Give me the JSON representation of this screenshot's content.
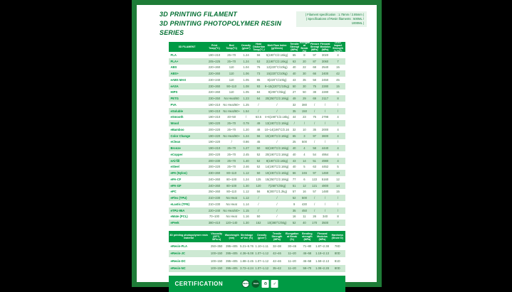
{
  "header": {
    "title_line1": "3D PRINTING FILAMENT",
    "title_line2": "3D PRINTING PHOTOPOLYMER RESIN SERIES",
    "spec_note_line1": "| Filament specification : 1.75mm / 2.85mm |",
    "spec_note_line2": "| Specifications of Resin filaments : 500ML / 1000ML |"
  },
  "colors": {
    "frame_green": "#1e7c37",
    "header_green": "#009a44",
    "row_alt_green": "#cde9d3",
    "title_green": "#006e30",
    "value_green": "#3c6e44",
    "letterbox": "#000000"
  },
  "filament_table": {
    "columns": [
      "3D FILAMENT",
      "Print Temp(°C)",
      "Bed Temp(°C)",
      "Density (g/cm³)",
      "Heat Distortion Temp(°C,0.45MPa)",
      "Melt Flow Index (g/10min)",
      "Tensile Strength (MPa)",
      "Elongation at Break (%)",
      "Flexural Strength (MPa)",
      "Flexural Modulus (MPa)",
      "IZOD Impact Strength (kJ/m²)"
    ],
    "rows": [
      {
        "name": "PLA",
        "values": [
          "190~210",
          "25~70",
          "1.24",
          "56",
          "5(190°C/2.16kg)",
          "65",
          "8",
          "97",
          "3020",
          "4"
        ]
      },
      {
        "name": "PLA+",
        "values": [
          "205~225",
          "25~70",
          "1.24",
          "53",
          "2(190°C/2.16kg)",
          "63",
          "20",
          "87",
          "3060",
          "7"
        ]
      },
      {
        "name": "ABS",
        "values": [
          "220~260",
          "110",
          "1.04",
          "76",
          "12(220°C/10kg)",
          "40",
          "22",
          "68",
          "2540",
          "15"
        ]
      },
      {
        "name": "ABS+",
        "values": [
          "220~260",
          "110",
          "1.06",
          "73",
          "15(220°C/10kg)",
          "40",
          "30",
          "66",
          "2400",
          "42"
        ]
      },
      {
        "name": "eABS MAX",
        "values": [
          "230~240",
          "110",
          "1.05",
          "85",
          "8(220°C/10kg)",
          "43",
          "35",
          "58",
          "2450",
          "45"
        ]
      },
      {
        "name": "eASA",
        "values": [
          "230~260",
          "90~110",
          "1.08",
          "93",
          "9~15(220°C/10kg)",
          "50",
          "30",
          "75",
          "2280",
          "15"
        ]
      },
      {
        "name": "HIPS",
        "values": [
          "220~260",
          "110",
          "1.05",
          "84",
          "9(200°C/5kg)",
          "27",
          "50",
          "38",
          "2280",
          "11"
        ]
      },
      {
        "name": "PETG",
        "values": [
          "230~250",
          "No Heat/60",
          "1.23",
          "64",
          "20(250°C/2.16kg)",
          "49",
          "29",
          "69",
          "2117",
          "8"
        ]
      },
      {
        "name": "PVA",
        "values": [
          "190~210",
          "No Heat/60~80",
          "1.25",
          "/",
          "/",
          "32",
          "380",
          "/",
          "/",
          "/"
        ]
      },
      {
        "name": "eSoluble",
        "values": [
          "190~210",
          "No Heat/60~80",
          "1.54",
          "/",
          "/",
          "35",
          "150",
          "/",
          "/",
          "/"
        ]
      },
      {
        "name": "eSmooth",
        "values": [
          "190~210",
          "40~50",
          "/",
          "63.5",
          "4~6(190°C/2.16kg)",
          "44",
          "23",
          "75",
          "2798",
          "4"
        ]
      },
      {
        "name": "Wood",
        "values": [
          "190~220",
          "25~70",
          "0.79",
          "49",
          "13(190°C/2.16kg)",
          "/",
          "/",
          "/",
          "/",
          "/"
        ]
      },
      {
        "name": "eBamboo",
        "values": [
          "200~220",
          "25~70",
          "1.20",
          "48",
          "10~14(190°C/2.16kg)",
          "32",
          "10",
          "35",
          "2000",
          "4"
        ]
      },
      {
        "name": "Color Change",
        "values": [
          "190~220",
          "No Heat/60~80",
          "1.24",
          "56",
          "10(190°C/2.16kg)",
          "65",
          "3",
          "97",
          "3600",
          "4"
        ]
      },
      {
        "name": "eClean",
        "values": [
          "190~220",
          "/",
          "0.86",
          "45",
          "/",
          "25",
          "500",
          "/",
          "/",
          "/"
        ]
      },
      {
        "name": "Bronze",
        "values": [
          "190~210",
          "25~70",
          "1.27",
          "50",
          "62(190°C/2.16kg)",
          "40",
          "4",
          "58",
          "4440",
          "4"
        ]
      },
      {
        "name": "eCopper",
        "values": [
          "200~220",
          "25~70",
          "2.45",
          "52",
          "20(190°C/2.16kg)",
          "40",
          "4",
          "54",
          "4954",
          "4"
        ]
      },
      {
        "name": "eAl-fill",
        "values": [
          "200~230",
          "25~70",
          "1.40",
          "52",
          "8(190°C/2.16kg)",
          "43",
          "14",
          "51",
          "4980",
          "4"
        ]
      },
      {
        "name": "eSteel",
        "values": [
          "200~220",
          "25~70",
          "2.46",
          "52",
          "14(190°C/2.16kg)",
          "40",
          "5",
          "63",
          "4452",
          "5"
        ]
      },
      {
        "name": "ePA (Nylon)",
        "values": [
          "230~260",
          "80~110",
          "1.12",
          "50",
          "10(230°C/2.16kg)",
          "66",
          "246",
          "97",
          "1460",
          "10"
        ]
      },
      {
        "name": "ePA-CF",
        "values": [
          "240~260",
          "80~100",
          "1.24",
          "125",
          "15(250°C/2.16kg)",
          "77",
          "6",
          "122",
          "5160",
          "12"
        ]
      },
      {
        "name": "ePA-GF",
        "values": [
          "240~260",
          "80~100",
          "1.30",
          "120",
          "7(250°C/5kg)",
          "51",
          "12",
          "121",
          "4800",
          "14"
        ]
      },
      {
        "name": "ePC",
        "values": [
          "250~260",
          "80~110",
          "1.12",
          "56",
          "8(300°C/1.2kg)",
          "57",
          "16",
          "57",
          "1480",
          "15"
        ]
      },
      {
        "name": "eFlex (TPU)",
        "values": [
          "210~230",
          "No Heat",
          "1.12",
          "/",
          "/",
          "52",
          "500",
          "/",
          "/",
          "/"
        ]
      },
      {
        "name": "eLastic (TPE)",
        "values": [
          "210~230",
          "No Heat",
          "1.14",
          "/",
          "/",
          "9",
          "430",
          "/",
          "/",
          "/"
        ]
      },
      {
        "name": "eTPU-95A",
        "values": [
          "220~240",
          "No Heat/40~60",
          "1.15",
          "/",
          "/",
          "35",
          "450",
          "/",
          "/",
          "/"
        ]
      },
      {
        "name": "eMate (PCL)",
        "values": [
          "70~100",
          "No Heat",
          "1.16",
          "50",
          "/",
          "16",
          "11",
          "26",
          "340",
          "8"
        ]
      },
      {
        "name": "ePeek",
        "values": [
          "380~410",
          "120~140",
          "1.30",
          "152",
          "10(380°C/5kg)",
          "52",
          "40",
          "170",
          "3500",
          "7"
        ]
      }
    ]
  },
  "resin_table": {
    "columns": [
      "3D printing photopolymer resin material",
      "Viscosity (25°C, MPa·s)",
      "Wavelength (nm)",
      "Shrinkage of Vol. (%)",
      "Density (g/cm³)",
      "Tensile Strength (MPa)",
      "Elongation at Break (%)",
      "Bending strength (MPa)",
      "Flexural Modulus (MPa)",
      "Hardness (Shore D)"
    ],
    "rows": [
      {
        "name": "eResin-PLA",
        "values": [
          "250~350",
          "395~405",
          "5.21~5.76",
          "1.10~1.11",
          "32~38",
          "30~46",
          "71~80",
          "1.87~2.38",
          "78D"
        ]
      },
      {
        "name": "eResin-JC",
        "values": [
          "100~150",
          "395~405",
          "4.36~5.08",
          "1.07~1.12",
          "42~46",
          "11~20",
          "46~58",
          "1.19~2.13",
          "80D"
        ]
      },
      {
        "name": "eResin-DC",
        "values": [
          "100~150",
          "395~405",
          "1.88~2.45",
          "1.07~1.12",
          "42~46",
          "11~20",
          "46~58",
          "1.59~2.13",
          "81D"
        ]
      },
      {
        "name": "eResin-NC",
        "values": [
          "100~150",
          "395~405",
          "3.72~4.24",
          "1.07~1.12",
          "35~42",
          "11~20",
          "59~70",
          "1.08~2.28",
          "80D"
        ]
      }
    ]
  },
  "certification": {
    "label": "CERTIFICATION",
    "badges": [
      "REACH",
      "RoHS",
      "CE",
      "FSC"
    ]
  }
}
